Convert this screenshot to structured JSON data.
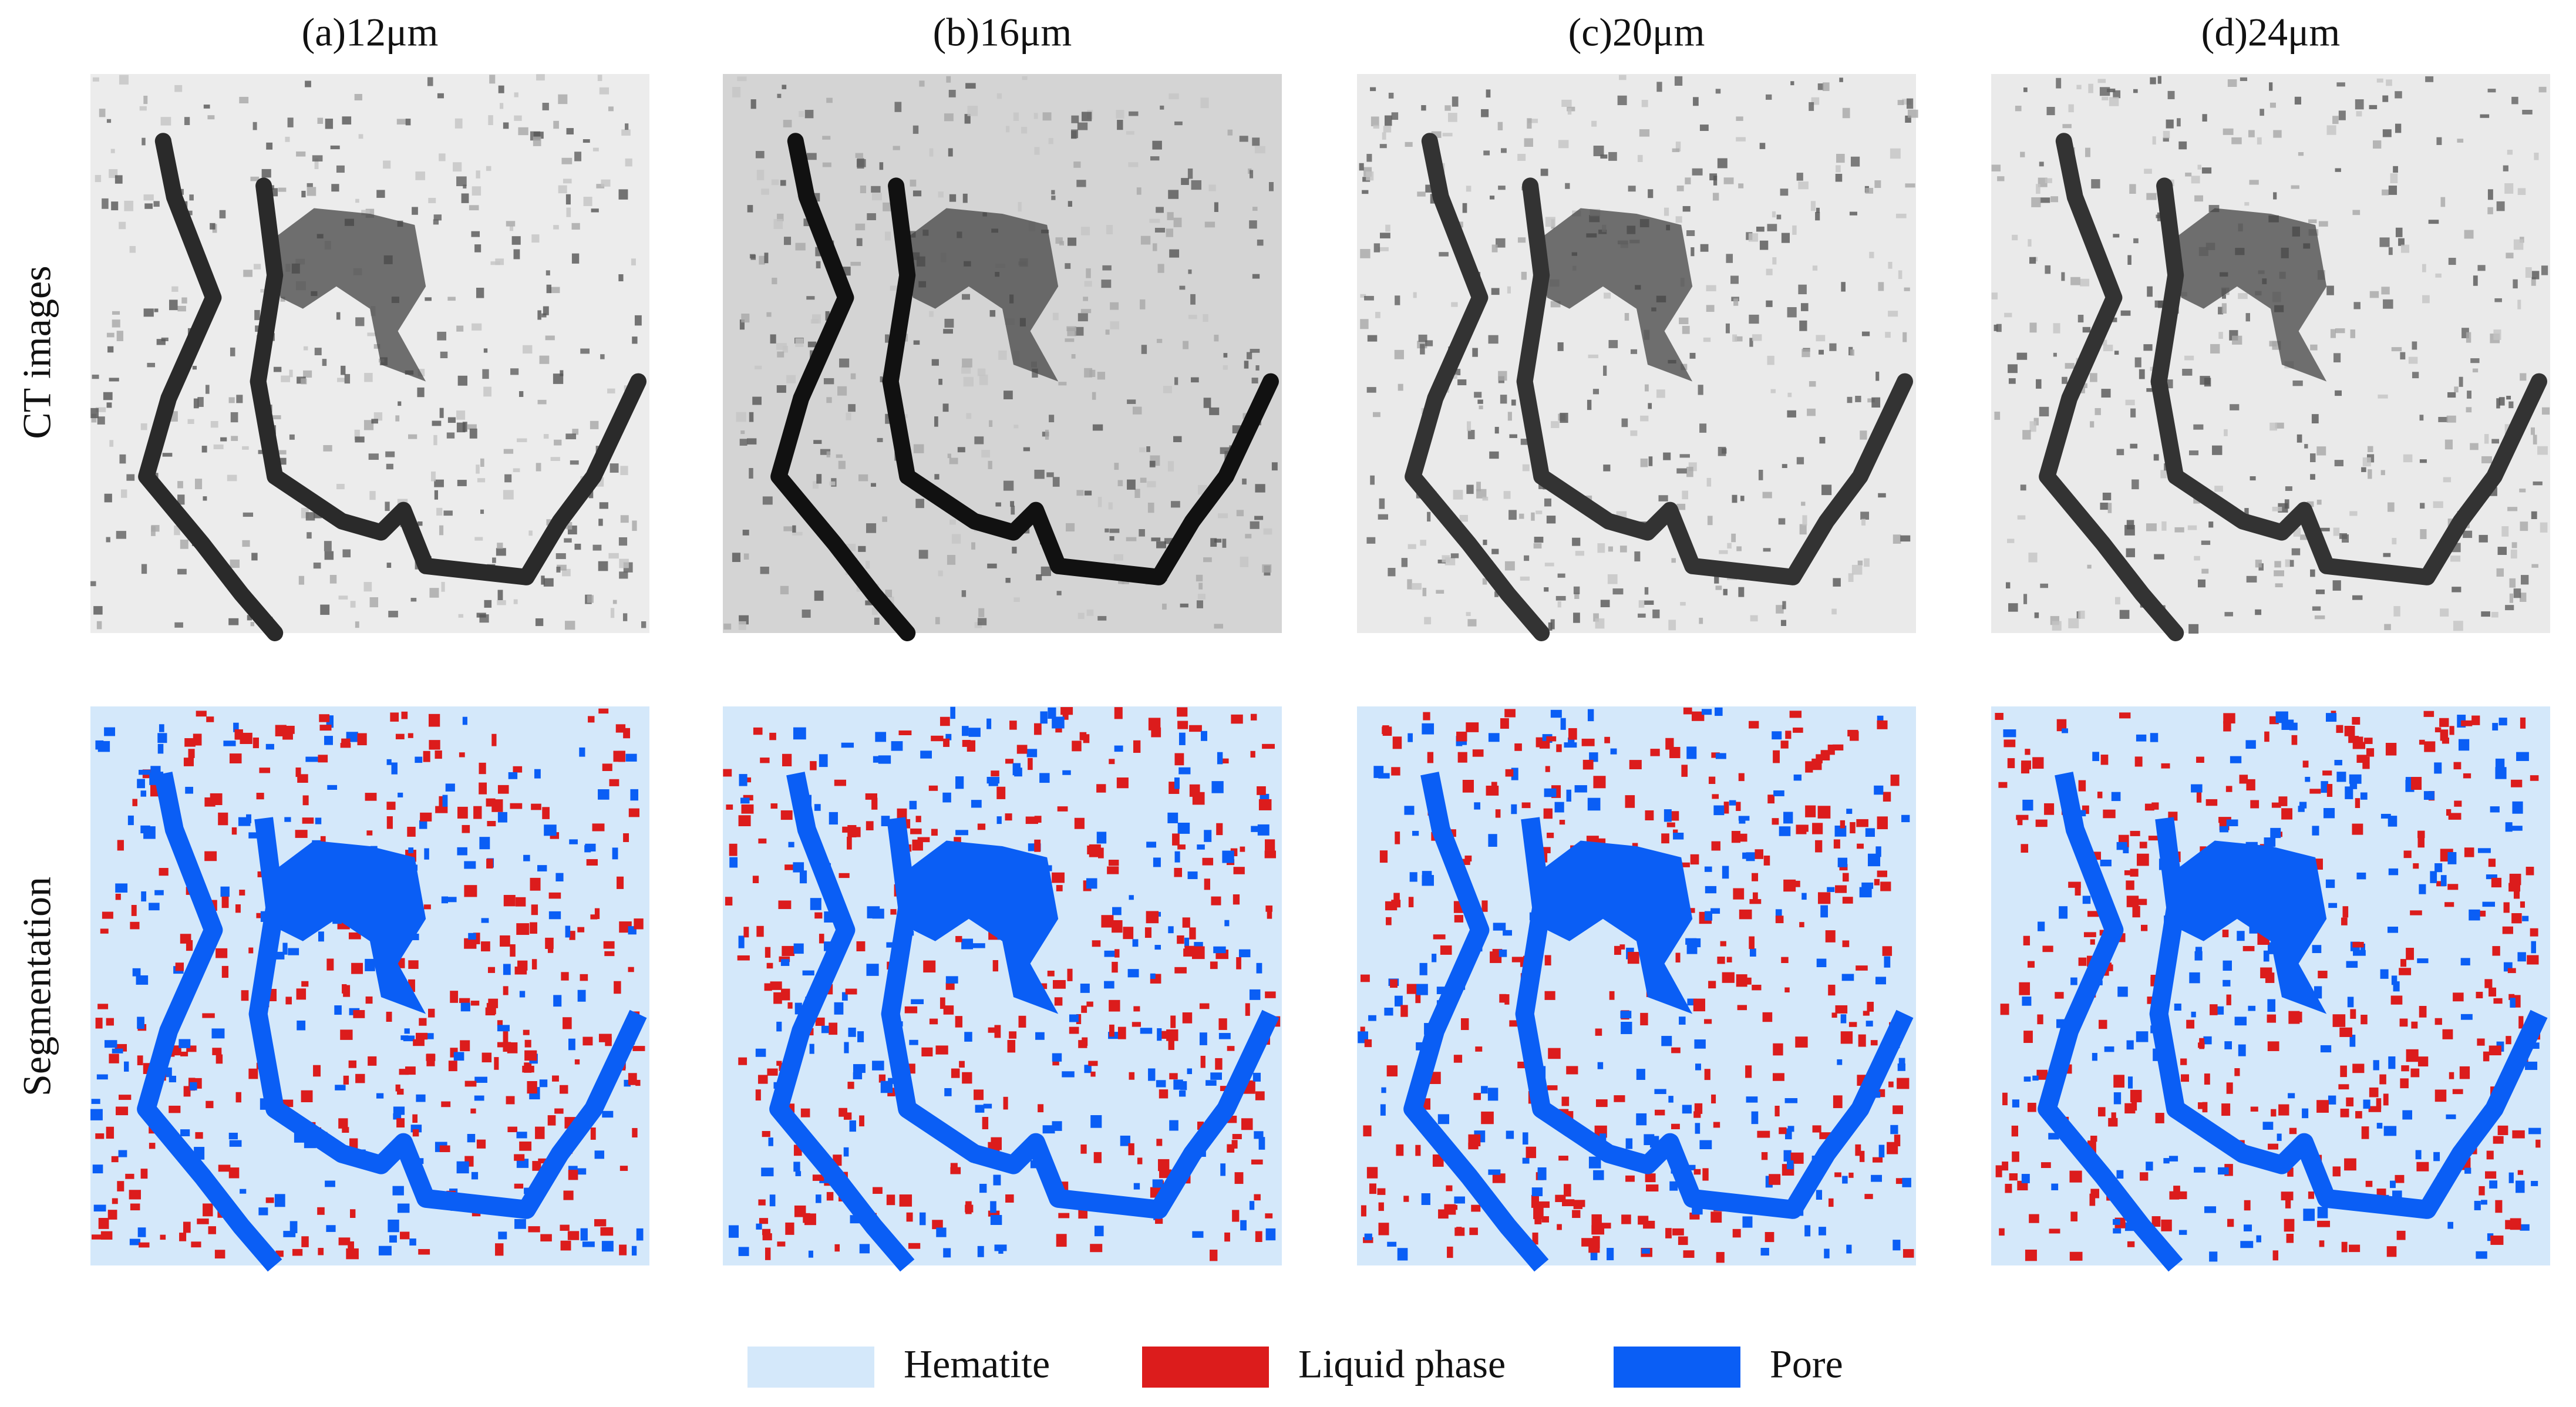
{
  "columns": [
    {
      "label": "(a)12μm"
    },
    {
      "label": "(b)16μm"
    },
    {
      "label": "(c)20μm"
    },
    {
      "label": "(d)24μm"
    }
  ],
  "rows": [
    {
      "label": "CT images"
    },
    {
      "label": "Segmentation"
    }
  ],
  "legend": [
    {
      "label": "Hematite",
      "color": "#d4e8fa"
    },
    {
      "label": "Liquid phase",
      "color": "#dc1c1c"
    },
    {
      "label": "Pore",
      "color": "#0a5ef5"
    }
  ]
}
